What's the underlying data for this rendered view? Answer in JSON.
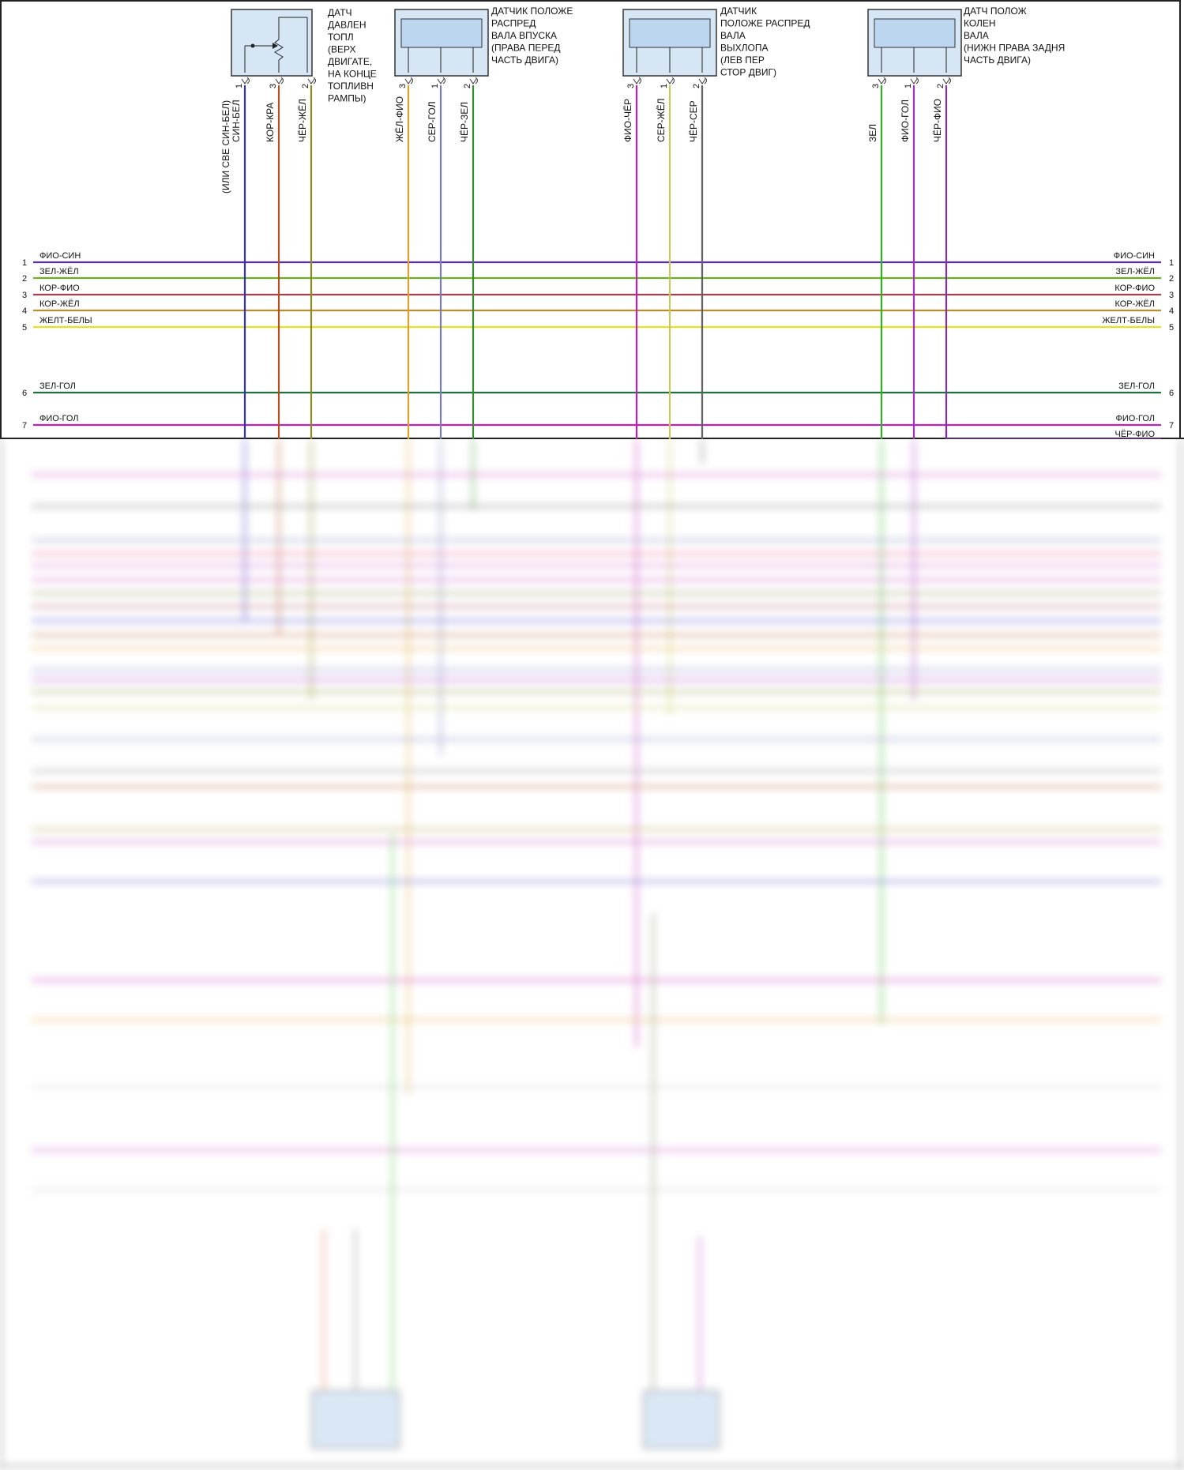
{
  "sensors": [
    {
      "id": "fuel-pressure",
      "lines": [
        "ДАТЧ",
        "ДАВЛЕН",
        "ТОПЛ",
        "(ВЕРХ",
        "ДВИГАТЕ,",
        "НА КОНЦЕ",
        "ТОПЛИВН",
        "РАМПЫ)"
      ]
    },
    {
      "id": "cam-intake",
      "lines": [
        "ДАТЧИК ПОЛОЖЕ",
        "РАСПРЕД",
        "ВАЛА ВПУСКА",
        "(ПРАВА ПЕРЕД",
        "ЧАСТЬ ДВИГА)"
      ]
    },
    {
      "id": "cam-exhaust",
      "lines": [
        "ДАТЧИК",
        "ПОЛОЖЕ РАСПРЕД",
        "ВАЛА",
        "ВЫХЛОПА",
        "(ЛЕВ ПЕР",
        "СТОР ДВИГ)"
      ]
    },
    {
      "id": "crank",
      "lines": [
        "ДАТЧ ПОЛОЖ",
        "КОЛЕН",
        "ВАЛА",
        "(НИЖН ПРАВА ЗАДНЯ",
        "ЧАСТЬ ДВИГА)"
      ]
    }
  ],
  "vertical_wires": [
    {
      "label": "(ИЛИ СВЕ СИН-БЕЛ)",
      "pin": "",
      "color": "#ffffff"
    },
    {
      "label": "СИН-БЕЛ",
      "pin": "1",
      "color": "#3030c0"
    },
    {
      "label": "КОР-КРА",
      "pin": "3",
      "color": "#b0501a"
    },
    {
      "label": "ЧЁР-ЖЁЛ",
      "pin": "2",
      "color": "#8a8a20"
    },
    {
      "label": "ЖЁЛ-ФИО",
      "pin": "3",
      "color": "#e0a030"
    },
    {
      "label": "СЕР-ГОЛ",
      "pin": "1",
      "color": "#7a7ac0"
    },
    {
      "label": "ЧЁР-ЗЕЛ",
      "pin": "2",
      "color": "#3a8a30"
    },
    {
      "label": "ФИО-ЧЁР",
      "pin": "3",
      "color": "#c020b0"
    },
    {
      "label": "СЕР-ЖЁЛ",
      "pin": "1",
      "color": "#c8c860"
    },
    {
      "label": "ЧЁР-СЕР",
      "pin": "2",
      "color": "#606060"
    },
    {
      "label": "ЗЕЛ",
      "pin": "3",
      "color": "#30b020"
    },
    {
      "label": "ФИО-ГОЛ",
      "pin": "1",
      "color": "#a030c0"
    },
    {
      "label": "ЧЁР-ФИО",
      "pin": "2",
      "color": "#8030a0"
    }
  ],
  "bus_wires": [
    {
      "num": "1",
      "label": "ФИО-СИН",
      "color": "#5a2ab0"
    },
    {
      "num": "2",
      "label": "ЗЕЛ-ЖЁЛ",
      "color": "#6ab020"
    },
    {
      "num": "3",
      "label": "КОР-ФИО",
      "color": "#a04050"
    },
    {
      "num": "4",
      "label": "КОР-ЖЁЛ",
      "color": "#b09030"
    },
    {
      "num": "5",
      "label": "ЖЕЛТ-БЕЛЫ",
      "color": "#e8e020"
    },
    {
      "num": "6",
      "label": "ЗЕЛ-ГОЛ",
      "color": "#207040"
    },
    {
      "num": "7",
      "label": "ФИО-ГОЛ",
      "color": "#c020c0"
    }
  ],
  "right_extra": {
    "label": "ЧЁР-ФИО"
  }
}
